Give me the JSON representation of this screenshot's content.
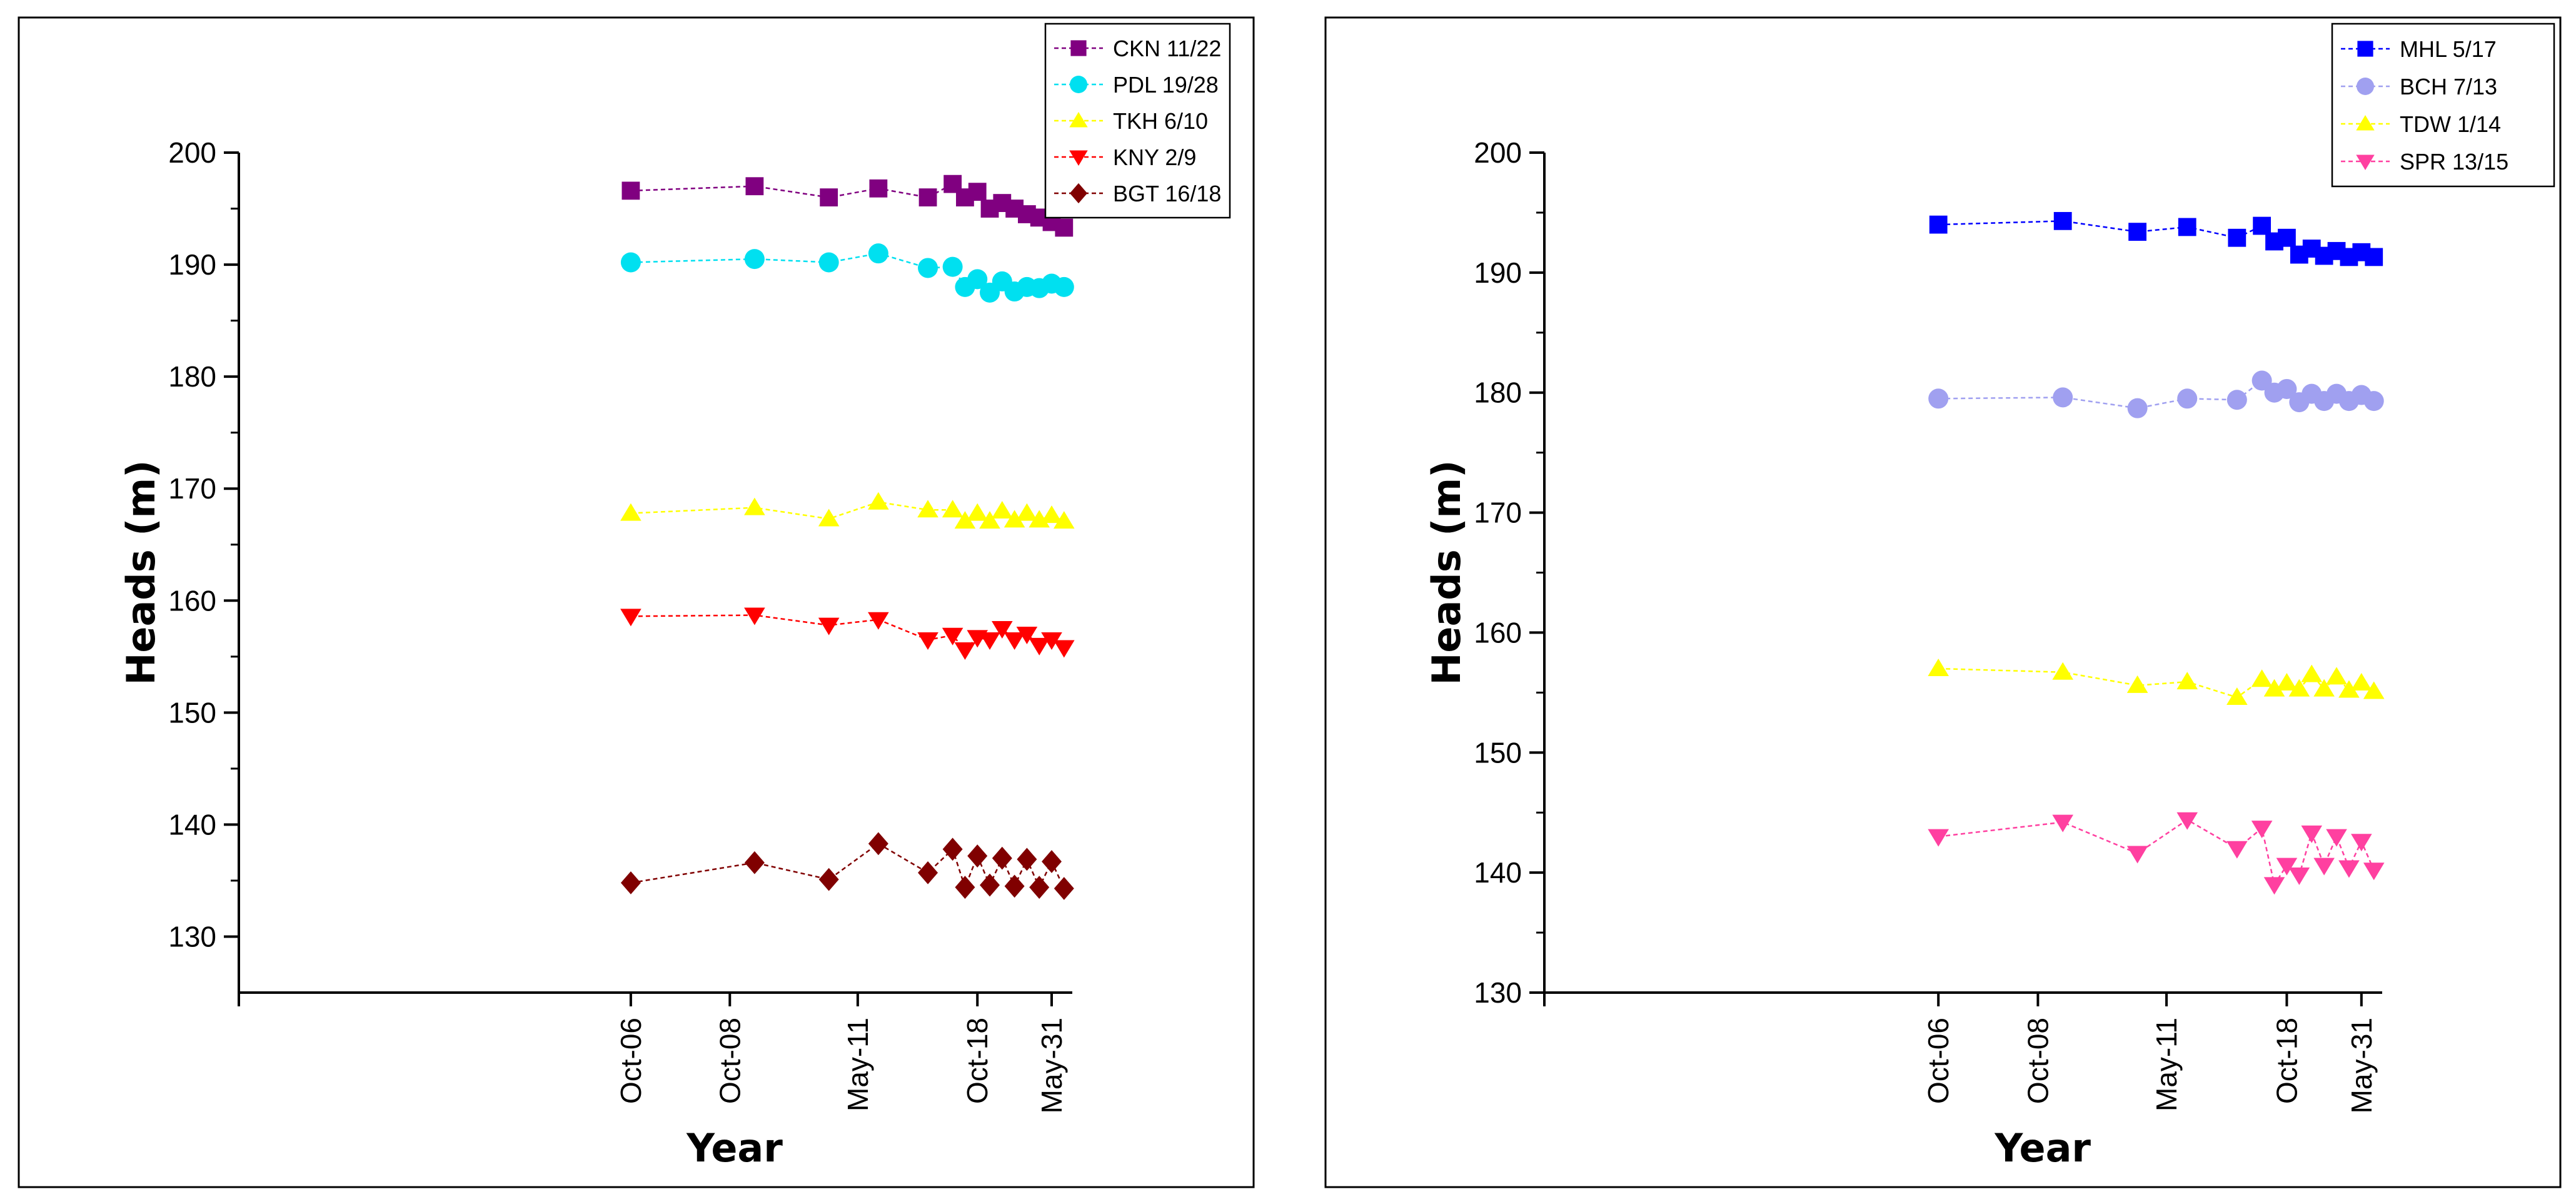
{
  "chart_data": [
    {
      "type": "line",
      "title": "",
      "xlabel": "Year",
      "ylabel": "Heads (m)",
      "xlim": [
        -95,
        107
      ],
      "ylim": [
        125,
        200
      ],
      "yticks": [
        130,
        140,
        150,
        160,
        170,
        180,
        190,
        200
      ],
      "xticks": [
        {
          "x": 0,
          "label": "Oct-06"
        },
        {
          "x": 24,
          "label": "Oct-08"
        },
        {
          "x": 55,
          "label": "May-11"
        },
        {
          "x": 84,
          "label": "Oct-18"
        },
        {
          "x": 102,
          "label": "May-31"
        }
      ],
      "legend_position": "top-right",
      "series": [
        {
          "name": "CKN 11/22",
          "color": "#800080",
          "marker": "square",
          "x": [
            0,
            30,
            48,
            60,
            72,
            78,
            81,
            84,
            87,
            90,
            93,
            96,
            99,
            102,
            105
          ],
          "y": [
            196.6,
            197.0,
            196.0,
            196.8,
            196.0,
            197.2,
            196.0,
            196.5,
            195.0,
            195.5,
            195.0,
            194.5,
            194.2,
            193.8,
            193.3
          ]
        },
        {
          "name": "PDL 19/28",
          "color": "#00E0F0",
          "marker": "circle",
          "x": [
            0,
            30,
            48,
            60,
            72,
            78,
            81,
            84,
            87,
            90,
            93,
            96,
            99,
            102,
            105
          ],
          "y": [
            190.2,
            190.5,
            190.2,
            191.0,
            189.7,
            189.8,
            188.0,
            188.7,
            187.5,
            188.5,
            187.6,
            188.0,
            187.9,
            188.3,
            188.0
          ]
        },
        {
          "name": "TKH 6/10",
          "color": "#FFFF00",
          "marker": "triangle-up",
          "x": [
            0,
            30,
            48,
            60,
            72,
            78,
            81,
            84,
            87,
            90,
            93,
            96,
            99,
            102,
            105
          ],
          "y": [
            167.8,
            168.3,
            167.3,
            168.8,
            168.1,
            168.1,
            167.1,
            167.8,
            167.1,
            168.0,
            167.2,
            167.8,
            167.2,
            167.6,
            167.1
          ]
        },
        {
          "name": "KNY 2/9",
          "color": "#FF0000",
          "marker": "triangle-down",
          "x": [
            0,
            30,
            48,
            60,
            72,
            78,
            81,
            84,
            87,
            90,
            93,
            96,
            99,
            102,
            105
          ],
          "y": [
            158.6,
            158.7,
            157.8,
            158.3,
            156.5,
            156.9,
            155.6,
            156.7,
            156.5,
            157.5,
            156.5,
            157.0,
            156.0,
            156.5,
            155.8
          ]
        },
        {
          "name": "BGT 16/18",
          "color": "#800000",
          "marker": "diamond",
          "x": [
            0,
            30,
            48,
            60,
            72,
            78,
            81,
            84,
            87,
            90,
            93,
            96,
            99,
            102,
            105
          ],
          "y": [
            134.8,
            136.6,
            135.1,
            138.3,
            135.7,
            137.8,
            134.4,
            137.2,
            134.6,
            137.0,
            134.5,
            136.9,
            134.4,
            136.7,
            134.3
          ]
        }
      ]
    },
    {
      "type": "line",
      "title": "",
      "xlabel": "Year",
      "ylabel": "Heads (m)",
      "xlim": [
        -95,
        107
      ],
      "ylim": [
        130,
        200
      ],
      "yticks": [
        130,
        140,
        150,
        160,
        170,
        180,
        190,
        200
      ],
      "xticks": [
        {
          "x": 0,
          "label": "Oct-06"
        },
        {
          "x": 24,
          "label": "Oct-08"
        },
        {
          "x": 55,
          "label": "May-11"
        },
        {
          "x": 84,
          "label": "Oct-18"
        },
        {
          "x": 102,
          "label": "May-31"
        }
      ],
      "legend_position": "top-right",
      "series": [
        {
          "name": "MHL 5/17",
          "color": "#0000FF",
          "marker": "square",
          "x": [
            0,
            30,
            48,
            60,
            72,
            78,
            81,
            84,
            87,
            90,
            93,
            96,
            99,
            102,
            105
          ],
          "y": [
            194.0,
            194.3,
            193.4,
            193.8,
            192.9,
            193.9,
            192.6,
            192.9,
            191.5,
            192.0,
            191.4,
            191.8,
            191.3,
            191.7,
            191.3
          ]
        },
        {
          "name": "BCH 7/13",
          "color": "#A0A0F0",
          "marker": "circle",
          "x": [
            0,
            30,
            48,
            60,
            72,
            78,
            81,
            84,
            87,
            90,
            93,
            96,
            99,
            102,
            105
          ],
          "y": [
            179.5,
            179.6,
            178.7,
            179.5,
            179.4,
            181.0,
            180.0,
            180.3,
            179.2,
            179.9,
            179.3,
            179.9,
            179.3,
            179.8,
            179.3
          ]
        },
        {
          "name": "TDW 1/14",
          "color": "#FFFF00",
          "marker": "triangle-up",
          "x": [
            0,
            30,
            48,
            60,
            72,
            78,
            81,
            84,
            87,
            90,
            93,
            96,
            99,
            102,
            105
          ],
          "y": [
            157.0,
            156.7,
            155.6,
            155.9,
            154.6,
            156.1,
            155.3,
            155.8,
            155.3,
            156.5,
            155.3,
            156.3,
            155.2,
            155.8,
            155.1
          ]
        },
        {
          "name": "SPR 13/15",
          "color": "#FF40A0",
          "marker": "triangle-down",
          "x": [
            0,
            30,
            48,
            60,
            72,
            78,
            81,
            84,
            87,
            90,
            93,
            96,
            99,
            102,
            105
          ],
          "y": [
            143.0,
            144.2,
            141.6,
            144.4,
            142.0,
            143.7,
            139.0,
            140.6,
            139.8,
            143.3,
            140.6,
            143.0,
            140.4,
            142.6,
            140.2
          ]
        }
      ]
    }
  ]
}
